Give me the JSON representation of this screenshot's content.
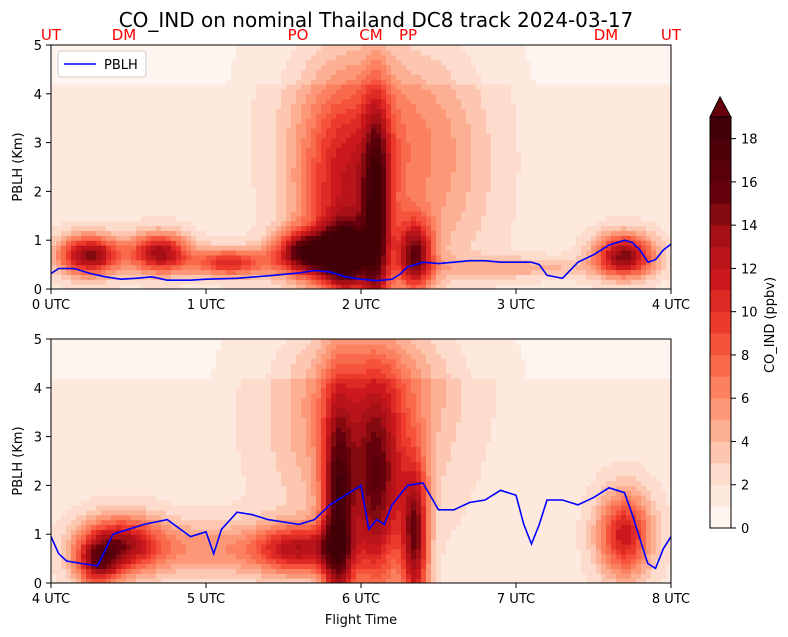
{
  "title": "CO_IND on nominal Thailand DC8 track 2024-03-17",
  "xlabel": "Flight Time",
  "colorbar": {
    "label": "CO_IND (ppbv)",
    "ticks": [
      "0",
      "2",
      "4",
      "6",
      "8",
      "10",
      "12",
      "14",
      "16",
      "18"
    ],
    "levels": [
      0,
      1,
      2,
      3,
      4,
      5,
      6,
      7,
      8,
      9,
      10,
      11,
      12,
      13,
      14,
      15,
      16,
      17,
      18,
      19
    ],
    "extend": "max"
  },
  "colors": {
    "pblh_line": "#0000ff",
    "site_labels": "#ff0000"
  },
  "site_labels": [
    "UT",
    "DM",
    "PO",
    "CM",
    "PP",
    "DM",
    "UT"
  ],
  "chart_data": [
    {
      "type": "heatmap",
      "ylabel": "PBLH (Km)",
      "ylim": [
        0,
        5
      ],
      "xlim_hours": [
        0,
        4
      ],
      "xticks": [
        "0 UTC",
        "1 UTC",
        "2 UTC",
        "3 UTC",
        "4 UTC"
      ],
      "yticks": [
        "0",
        "1",
        "2",
        "3",
        "4",
        "5"
      ],
      "legend": {
        "entry": "PBLH",
        "placement": "top-left"
      },
      "series": [
        {
          "name": "PBLH",
          "x": [
            0,
            0.05,
            0.15,
            0.25,
            0.35,
            0.45,
            0.55,
            0.65,
            0.75,
            0.9,
            1.0,
            1.2,
            1.4,
            1.6,
            1.7,
            1.8,
            1.9,
            2.0,
            2.1,
            2.2,
            2.25,
            2.3,
            2.4,
            2.5,
            2.6,
            2.7,
            2.8,
            2.9,
            3.0,
            3.1,
            3.15,
            3.2,
            3.3,
            3.4,
            3.5,
            3.6,
            3.7,
            3.75,
            3.8,
            3.85,
            3.9,
            3.95,
            4.0
          ],
          "y": [
            0.32,
            0.42,
            0.42,
            0.32,
            0.25,
            0.2,
            0.22,
            0.25,
            0.18,
            0.18,
            0.2,
            0.22,
            0.27,
            0.33,
            0.38,
            0.35,
            0.25,
            0.2,
            0.17,
            0.2,
            0.3,
            0.45,
            0.55,
            0.52,
            0.55,
            0.58,
            0.58,
            0.55,
            0.55,
            0.55,
            0.5,
            0.28,
            0.22,
            0.55,
            0.7,
            0.9,
            1.0,
            0.95,
            0.8,
            0.55,
            0.6,
            0.8,
            0.92
          ]
        }
      ],
      "plumes": [
        {
          "t": 0.25,
          "alt": 0.7,
          "st": 0.14,
          "sz": 0.28,
          "c": 13
        },
        {
          "t": 0.7,
          "alt": 0.75,
          "st": 0.13,
          "sz": 0.28,
          "c": 12
        },
        {
          "t": 1.15,
          "alt": 0.55,
          "st": 0.18,
          "sz": 0.2,
          "c": 9
        },
        {
          "t": 1.65,
          "alt": 0.75,
          "st": 0.14,
          "sz": 0.3,
          "c": 14
        },
        {
          "t": 1.9,
          "alt": 0.7,
          "st": 0.1,
          "sz": 0.45,
          "c": 15
        },
        {
          "t": 1.9,
          "alt": 1.9,
          "st": 0.22,
          "sz": 1.5,
          "c": 9
        },
        {
          "t": 2.1,
          "alt": 1.4,
          "st": 0.06,
          "sz": 1.7,
          "c": 11
        },
        {
          "t": 2.35,
          "alt": 0.7,
          "st": 0.08,
          "sz": 0.5,
          "c": 12
        },
        {
          "t": 2.5,
          "alt": 2.4,
          "st": 0.25,
          "sz": 1.6,
          "c": 3
        },
        {
          "t": 2.05,
          "alt": 3.6,
          "st": 0.35,
          "sz": 1.3,
          "c": 3
        },
        {
          "t": 3.7,
          "alt": 0.7,
          "st": 0.13,
          "sz": 0.3,
          "c": 13
        },
        {
          "t": 3.0,
          "alt": 0.45,
          "st": 0.4,
          "sz": 0.15,
          "c": 3
        }
      ]
    },
    {
      "type": "heatmap",
      "ylabel": "PBLH (Km)",
      "ylim": [
        0,
        5
      ],
      "xlim_hours": [
        4,
        8
      ],
      "xticks": [
        "4 UTC",
        "5 UTC",
        "6 UTC",
        "7 UTC",
        "8 UTC"
      ],
      "yticks": [
        "0",
        "1",
        "2",
        "3",
        "4",
        "5"
      ],
      "series": [
        {
          "name": "PBLH",
          "x": [
            4.0,
            4.05,
            4.1,
            4.2,
            4.3,
            4.4,
            4.5,
            4.6,
            4.75,
            4.9,
            5.0,
            5.05,
            5.1,
            5.2,
            5.3,
            5.4,
            5.5,
            5.6,
            5.7,
            5.8,
            5.9,
            6.0,
            6.05,
            6.1,
            6.15,
            6.2,
            6.3,
            6.4,
            6.5,
            6.6,
            6.7,
            6.8,
            6.9,
            7.0,
            7.05,
            7.1,
            7.15,
            7.2,
            7.3,
            7.4,
            7.5,
            7.6,
            7.7,
            7.75,
            7.8,
            7.85,
            7.9,
            7.95,
            8.0
          ],
          "y": [
            0.95,
            0.6,
            0.45,
            0.4,
            0.35,
            1.0,
            1.1,
            1.2,
            1.3,
            0.95,
            1.05,
            0.6,
            1.1,
            1.45,
            1.4,
            1.3,
            1.25,
            1.2,
            1.3,
            1.6,
            1.8,
            2.0,
            1.1,
            1.3,
            1.2,
            1.6,
            2.0,
            2.05,
            1.5,
            1.5,
            1.65,
            1.7,
            1.9,
            1.8,
            1.2,
            0.8,
            1.2,
            1.7,
            1.7,
            1.6,
            1.75,
            1.95,
            1.85,
            1.4,
            0.9,
            0.4,
            0.3,
            0.7,
            0.95
          ]
        }
      ],
      "plumes": [
        {
          "t": 4.45,
          "alt": 0.8,
          "st": 0.18,
          "sz": 0.4,
          "c": 11
        },
        {
          "t": 4.3,
          "alt": 0.4,
          "st": 0.1,
          "sz": 0.35,
          "c": 9
        },
        {
          "t": 5.6,
          "alt": 0.7,
          "st": 0.2,
          "sz": 0.35,
          "c": 10
        },
        {
          "t": 5.85,
          "alt": 1.3,
          "st": 0.07,
          "sz": 1.7,
          "c": 13
        },
        {
          "t": 6.1,
          "alt": 1.8,
          "st": 0.12,
          "sz": 1.5,
          "c": 11
        },
        {
          "t": 6.35,
          "alt": 0.9,
          "st": 0.06,
          "sz": 1.1,
          "c": 12
        },
        {
          "t": 6.0,
          "alt": 3.0,
          "st": 0.35,
          "sz": 1.3,
          "c": 5
        },
        {
          "t": 6.1,
          "alt": 4.3,
          "st": 0.35,
          "sz": 0.8,
          "c": 3
        },
        {
          "t": 7.7,
          "alt": 1.0,
          "st": 0.12,
          "sz": 0.6,
          "c": 10
        },
        {
          "t": 5.0,
          "alt": 0.7,
          "st": 0.35,
          "sz": 0.4,
          "c": 4
        }
      ]
    }
  ]
}
